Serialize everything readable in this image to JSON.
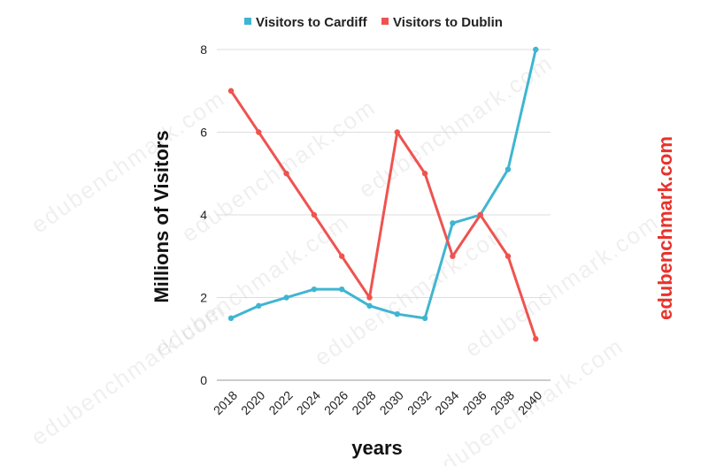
{
  "chart_data": {
    "type": "line",
    "categories": [
      "2018",
      "2020",
      "2022",
      "2024",
      "2026",
      "2028",
      "2030",
      "2032",
      "2034",
      "2036",
      "2038",
      "2040"
    ],
    "series": [
      {
        "name": "Visitors to Cardiff",
        "color": "#40b5d1",
        "values": [
          1.5,
          1.8,
          2.0,
          2.2,
          2.2,
          1.8,
          1.6,
          1.5,
          3.8,
          4.0,
          5.1,
          8.0
        ]
      },
      {
        "name": "Visitors to Dublin",
        "color": "#ef5350",
        "values": [
          7.0,
          6.0,
          5.0,
          4.0,
          3.0,
          2.0,
          6.0,
          5.0,
          3.0,
          4.0,
          3.0,
          1.0
        ]
      }
    ],
    "xlabel": "years",
    "ylabel": "Millions of Visitors",
    "ylim": [
      0,
      8
    ],
    "yticks": [
      0,
      2,
      4,
      6,
      8
    ],
    "grid": true,
    "legend_position": "top"
  },
  "watermark": "edubenchmark.com"
}
